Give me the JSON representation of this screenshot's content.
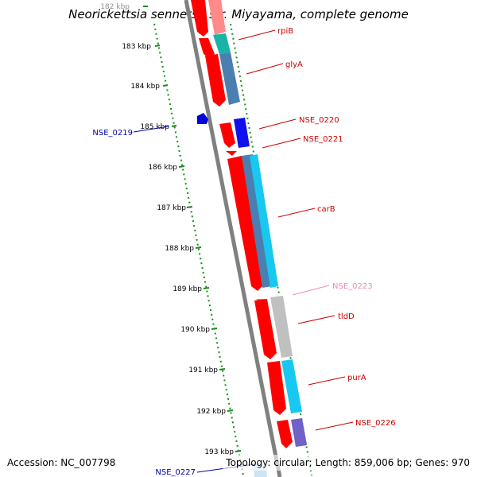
{
  "title": "Neorickettsia sennetsu str. Miyayama, complete genome",
  "footer": {
    "accession": "Accession: NC_007798",
    "topology": "Topology: circular; Length: 859,006 bp; Genes: 970"
  },
  "ruler": {
    "ticks": [
      "182 kbp",
      "183 kbp",
      "184 kbp",
      "185 kbp",
      "186 kbp",
      "187 kbp",
      "188 kbp",
      "189 kbp",
      "190 kbp",
      "191 kbp",
      "192 kbp",
      "193 kbp"
    ]
  },
  "gene_labels": {
    "rpiB": "rpiB",
    "glyA": "glyA",
    "NSE_0219": "NSE_0219",
    "NSE_0220": "NSE_0220",
    "NSE_0221": "NSE_0221",
    "carB": "carB",
    "NSE_0223": "NSE_0223",
    "tldD": "tldD",
    "purA": "purA",
    "NSE_0226": "NSE_0226",
    "NSE_0227": "NSE_0227"
  },
  "colors": {
    "backbone": "#808080",
    "ruler_dots": "#1a8c1a",
    "forward_gene": "#ff0000",
    "reverse_gene": "#0000dd",
    "label_forward": "#cc0000",
    "label_reverse": "#0000aa",
    "label_faint": "#ee88bb",
    "cog_teal": "#19b3a8",
    "cog_steelblue": "#4a7fb0",
    "cog_blue": "#1010ee",
    "cog_cyan": "#18c8f0",
    "cog_gray": "#c0c0c0",
    "cog_purple": "#7060c8"
  }
}
